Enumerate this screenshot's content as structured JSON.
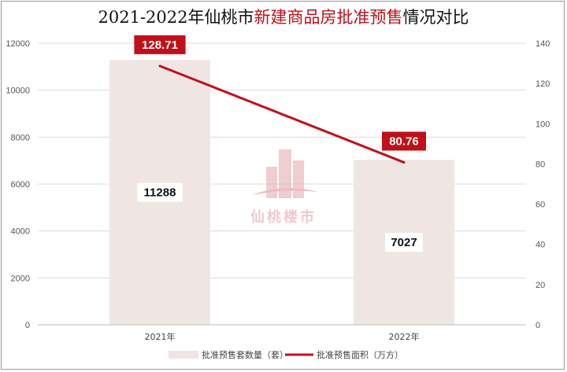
{
  "chart_data": {
    "type": "bar",
    "title_parts": [
      {
        "text": "2021-2022年仙桃市",
        "highlight": false
      },
      {
        "text": "新建商品房批准预售",
        "highlight": true
      },
      {
        "text": "情况对比",
        "highlight": false
      }
    ],
    "categories": [
      "2021年",
      "2022年"
    ],
    "series": [
      {
        "name": "批准预售套数量（套）",
        "type": "bar",
        "axis": "left",
        "values": [
          11288,
          7027
        ],
        "color": "#efe5e3"
      },
      {
        "name": "批准预售面积（万方）",
        "type": "line",
        "axis": "right",
        "values": [
          128.71,
          80.76
        ],
        "color": "#c0101a"
      }
    ],
    "y_left": {
      "min": 0,
      "max": 12000,
      "ticks": [
        0,
        2000,
        4000,
        6000,
        8000,
        10000,
        12000
      ]
    },
    "y_right": {
      "min": 0,
      "max": 140,
      "ticks": [
        0,
        20,
        40,
        60,
        80,
        100,
        120,
        140
      ]
    },
    "bar_labels": [
      "11288",
      "7027"
    ],
    "line_labels": [
      "128.71",
      "80.76"
    ],
    "grid": true,
    "legend_position": "bottom",
    "watermark": "仙桃楼市"
  }
}
